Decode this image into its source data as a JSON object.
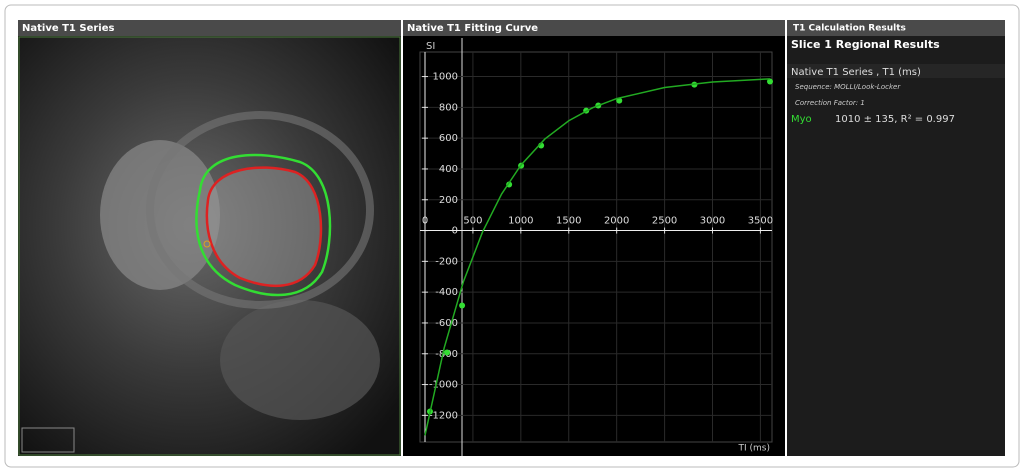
{
  "image_panel": {
    "title": "Native T1 Series"
  },
  "chart_data": {
    "type": "scatter",
    "title": "Native T1 Fitting Curve",
    "y_label": "SI",
    "x_label": "TI (ms)",
    "xlim": [
      0,
      3600
    ],
    "xticks": [
      0,
      500,
      1000,
      1500,
      2000,
      2500,
      3000,
      3500
    ],
    "ylim": [
      -1360,
      1140
    ],
    "yticks": [
      -1200,
      -1000,
      -800,
      -600,
      -400,
      -200,
      0,
      200,
      400,
      600,
      800,
      1000
    ],
    "grid": true,
    "series": [
      {
        "style": "points",
        "color": "#33dd33",
        "x": [
          52,
          230,
          387,
          878,
          1003,
          1212,
          1682,
          1808,
          2027,
          2811,
          3600
        ],
        "values": [
          -1175,
          -792,
          -487,
          299,
          422,
          552,
          779,
          812,
          844,
          948,
          968
        ]
      },
      {
        "style": "line",
        "color": "#22aa22",
        "x": [
          0,
          200,
          400,
          600,
          800,
          1000,
          1250,
          1500,
          1750,
          2000,
          2500,
          3000,
          3600
        ],
        "values": [
          -1330,
          -762,
          -333,
          -10,
          238,
          424,
          594,
          713,
          798,
          857,
          929,
          965,
          985
        ]
      }
    ]
  },
  "results": {
    "title": "T1 Calculation Results",
    "heading": "Slice 1 Regional Results",
    "series_label": "Native T1 Series , T1 (ms)",
    "sequence": "Sequence: MOLLI/Look-Locker",
    "correction": "Correction Factor: 1",
    "region": "Myo",
    "value": "1010 ± 135, R² = 0.997"
  }
}
